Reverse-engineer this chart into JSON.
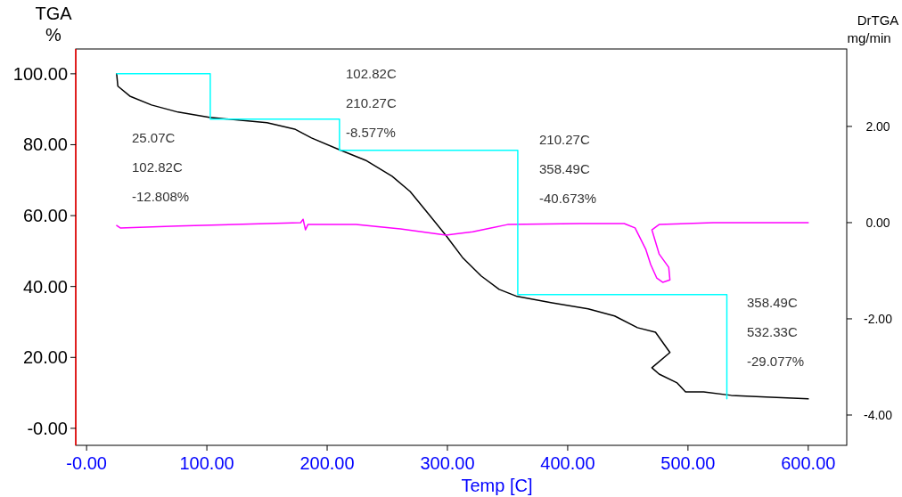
{
  "chart_data": {
    "type": "line",
    "xlabel": "Temp  [C]",
    "ylabel": "TGA\n%",
    "y2label": "DrTGA\nmg/min",
    "xlim": [
      -9,
      632
    ],
    "ylim": [
      -4.8,
      107
    ],
    "y2lim": [
      -4.63,
      3.61
    ],
    "xticks": [
      {
        "value": 0,
        "label": "-0.00"
      },
      {
        "value": 100,
        "label": "100.00"
      },
      {
        "value": 200,
        "label": "200.00"
      },
      {
        "value": 300,
        "label": "300.00"
      },
      {
        "value": 400,
        "label": "400.00"
      },
      {
        "value": 500,
        "label": "500.00"
      },
      {
        "value": 600,
        "label": "600.00"
      }
    ],
    "yticks": [
      {
        "value": 0,
        "label": "-0.00"
      },
      {
        "value": 20,
        "label": "20.00"
      },
      {
        "value": 40,
        "label": "40.00"
      },
      {
        "value": 60,
        "label": "60.00"
      },
      {
        "value": 80,
        "label": "80.00"
      },
      {
        "value": 100,
        "label": "100.00"
      }
    ],
    "y2ticks": [
      {
        "value": -4,
        "label": "-4.00"
      },
      {
        "value": -2,
        "label": "-2.00"
      },
      {
        "value": 0,
        "label": "0.00"
      },
      {
        "value": 2,
        "label": "2.00"
      }
    ],
    "series": [
      {
        "color": "#000000",
        "x": [
          25,
          26,
          36,
          54,
          76,
          102,
          128,
          150,
          173,
          187,
          210,
          232,
          254,
          269,
          284,
          299,
          313,
          328,
          343,
          358,
          387,
          417,
          439,
          458,
          473,
          485,
          470,
          476,
          491,
          498,
          513,
          536,
          565,
          600
        ],
        "values": [
          100,
          96.5,
          93.7,
          91.2,
          89.2,
          87.7,
          86.9,
          86.2,
          84.4,
          81.9,
          78.6,
          75.6,
          71.1,
          66.8,
          60.6,
          54.3,
          48,
          43,
          39.2,
          37.2,
          35.4,
          33.7,
          31.7,
          28.4,
          27.1,
          21.4,
          17.1,
          15.3,
          12.8,
          10.3,
          10.3,
          9.3,
          8.8,
          8.3
        ]
      },
      {
        "color": "#ff00ff",
        "axis": "y2",
        "x": [
          25,
          28,
          76,
          150,
          178,
          180,
          182,
          184,
          224,
          261,
          299,
          321,
          350,
          410,
          447,
          456,
          465,
          469,
          474,
          479,
          485,
          484,
          476,
          470,
          476,
          521,
          600
        ],
        "values": [
          -0.06,
          -0.11,
          -0.07,
          -0.02,
          0,
          0.07,
          -0.15,
          -0.04,
          -0.04,
          -0.13,
          -0.26,
          -0.19,
          -0.04,
          -0.02,
          -0.02,
          -0.11,
          -0.56,
          -0.87,
          -1.15,
          -1.24,
          -1.19,
          -0.93,
          -0.65,
          -0.15,
          -0.04,
          0,
          0
        ]
      },
      {
        "color": "#00ffff",
        "x": [
          25.07,
          102.82,
          102.82,
          210.27,
          210.27,
          358.49,
          358.49,
          532.33,
          532.33
        ],
        "values": [
          100,
          100,
          87.2,
          87.2,
          78.4,
          78.4,
          37.7,
          37.7,
          8.3
        ]
      }
    ],
    "annotations": [
      "25.07C",
      "102.82C",
      "-12.808%",
      "102.82C",
      "210.27C",
      "-8.577%",
      "210.27C",
      "358.49C",
      "-40.673%",
      "358.49C",
      "532.33C",
      "-29.077%"
    ]
  }
}
